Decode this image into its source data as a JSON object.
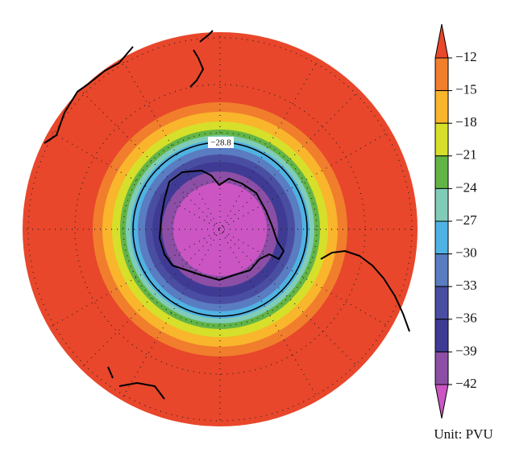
{
  "map": {
    "contour_label": {
      "value": -28.8,
      "label": "−28.8"
    },
    "colorbar": {
      "ticks": [
        {
          "value": -12,
          "label": "−12"
        },
        {
          "value": -15,
          "label": "−15"
        },
        {
          "value": -18,
          "label": "−18"
        },
        {
          "value": -21,
          "label": "−21"
        },
        {
          "value": -24,
          "label": "−24"
        },
        {
          "value": -27,
          "label": "−27"
        },
        {
          "value": -30,
          "label": "−30"
        },
        {
          "value": -33,
          "label": "−33"
        },
        {
          "value": -36,
          "label": "−36"
        },
        {
          "value": -39,
          "label": "−39"
        },
        {
          "value": -42,
          "label": "−42"
        }
      ],
      "colors": [
        "#e8472b",
        "#f17e2c",
        "#f9b52c",
        "#d6df2a",
        "#62b447",
        "#80ccb8",
        "#4fb2e2",
        "#5a7cc0",
        "#4a4ea2",
        "#3f3b94",
        "#8c4fa5",
        "#cc55c4"
      ],
      "unit": "Unit: PVU"
    }
  }
}
